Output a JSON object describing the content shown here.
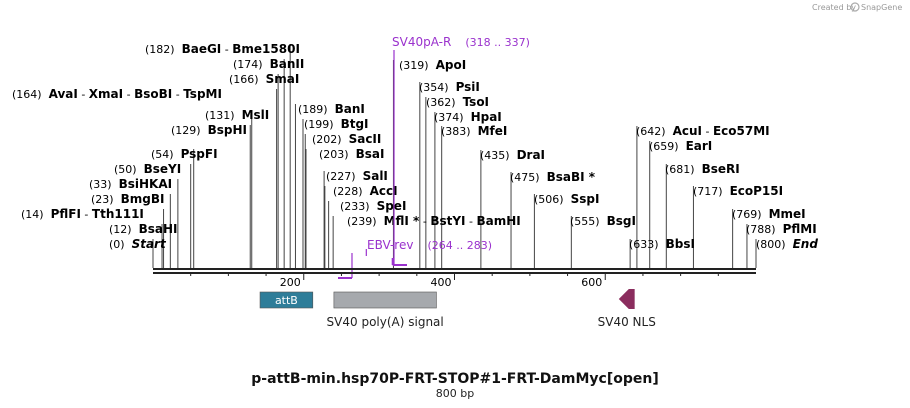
{
  "credit": {
    "text": "Created by",
    "brand": "SnapGene"
  },
  "title": "p-attB-min.hsp70P-FRT-STOP#1-FRT-DamMyc[open]",
  "subtitle": "800 bp",
  "ruler": {
    "length": 800,
    "ticks": [
      200,
      400,
      600
    ]
  },
  "sites": [
    {
      "pos": "(0)",
      "bp": 0,
      "label": [
        {
          "t": "Start",
          "i": true
        }
      ]
    },
    {
      "pos": "(12)",
      "bp": 12,
      "label": [
        {
          "t": "BsaHI"
        }
      ]
    },
    {
      "pos": "(14)",
      "bp": 14,
      "label": [
        {
          "t": "PflFI"
        },
        {
          "t": " - "
        },
        {
          "t": "Tth111I"
        }
      ]
    },
    {
      "pos": "(23)",
      "bp": 23,
      "label": [
        {
          "t": "BmgBI"
        }
      ]
    },
    {
      "pos": "(33)",
      "bp": 33,
      "label": [
        {
          "t": "BsiHKAI"
        }
      ]
    },
    {
      "pos": "(50)",
      "bp": 50,
      "label": [
        {
          "t": "BseYI"
        }
      ]
    },
    {
      "pos": "(54)",
      "bp": 54,
      "label": [
        {
          "t": "PspFI"
        }
      ]
    },
    {
      "pos": "(129)",
      "bp": 129,
      "label": [
        {
          "t": "BspHI"
        }
      ]
    },
    {
      "pos": "(131)",
      "bp": 131,
      "label": [
        {
          "t": "MslI"
        }
      ]
    },
    {
      "pos": "(164)",
      "bp": 164,
      "label": [
        {
          "t": "AvaI"
        },
        {
          "t": " - "
        },
        {
          "t": "XmaI"
        },
        {
          "t": " - "
        },
        {
          "t": "BsoBI"
        },
        {
          "t": " - "
        },
        {
          "t": "TspMI"
        }
      ]
    },
    {
      "pos": "(166)",
      "bp": 166,
      "label": [
        {
          "t": "SmaI"
        }
      ]
    },
    {
      "pos": "(174)",
      "bp": 174,
      "label": [
        {
          "t": "BanII"
        }
      ]
    },
    {
      "pos": "(182)",
      "bp": 182,
      "label": [
        {
          "t": "BaeGI"
        },
        {
          "t": " - "
        },
        {
          "t": "Bme1580I"
        }
      ]
    },
    {
      "pos": "(189)",
      "bp": 189,
      "label": [
        {
          "t": "BanI"
        }
      ]
    },
    {
      "pos": "(199)",
      "bp": 199,
      "label": [
        {
          "t": "BtgI"
        }
      ]
    },
    {
      "pos": "(202)",
      "bp": 202,
      "label": [
        {
          "t": "SacII"
        }
      ]
    },
    {
      "pos": "(203)",
      "bp": 203,
      "label": [
        {
          "t": "BsaI"
        }
      ]
    },
    {
      "pos": "(227)",
      "bp": 227,
      "label": [
        {
          "t": "SalI"
        }
      ]
    },
    {
      "pos": "(228)",
      "bp": 228,
      "label": [
        {
          "t": "AccI"
        }
      ]
    },
    {
      "pos": "(233)",
      "bp": 233,
      "label": [
        {
          "t": "SpeI"
        }
      ]
    },
    {
      "pos": "(239)",
      "bp": 239,
      "label": [
        {
          "t": "MflI *"
        },
        {
          "t": " - "
        },
        {
          "t": "BstYI"
        },
        {
          "t": " - "
        },
        {
          "t": "BamHI"
        }
      ]
    },
    {
      "pos": "(319)",
      "bp": 319,
      "label": [
        {
          "t": "ApoI"
        }
      ]
    },
    {
      "pos": "(354)",
      "bp": 354,
      "label": [
        {
          "t": "PsiI"
        }
      ]
    },
    {
      "pos": "(362)",
      "bp": 362,
      "label": [
        {
          "t": "TsoI"
        }
      ]
    },
    {
      "pos": "(374)",
      "bp": 374,
      "label": [
        {
          "t": "HpaI"
        }
      ]
    },
    {
      "pos": "(383)",
      "bp": 383,
      "label": [
        {
          "t": "MfeI"
        }
      ]
    },
    {
      "pos": "(435)",
      "bp": 435,
      "label": [
        {
          "t": "DraI"
        }
      ]
    },
    {
      "pos": "(475)",
      "bp": 475,
      "label": [
        {
          "t": "BsaBI *"
        }
      ]
    },
    {
      "pos": "(506)",
      "bp": 506,
      "label": [
        {
          "t": "SspI"
        }
      ]
    },
    {
      "pos": "(555)",
      "bp": 555,
      "label": [
        {
          "t": "BsgI"
        }
      ]
    },
    {
      "pos": "(633)",
      "bp": 633,
      "label": [
        {
          "t": "BbsI"
        }
      ]
    },
    {
      "pos": "(642)",
      "bp": 642,
      "label": [
        {
          "t": "AcuI"
        },
        {
          "t": " - "
        },
        {
          "t": "Eco57MI"
        }
      ]
    },
    {
      "pos": "(659)",
      "bp": 659,
      "label": [
        {
          "t": "EarI"
        }
      ]
    },
    {
      "pos": "(681)",
      "bp": 681,
      "label": [
        {
          "t": "BseRI"
        }
      ]
    },
    {
      "pos": "(717)",
      "bp": 717,
      "label": [
        {
          "t": "EcoP15I"
        }
      ]
    },
    {
      "pos": "(769)",
      "bp": 769,
      "label": [
        {
          "t": "MmeI"
        }
      ]
    },
    {
      "pos": "(788)",
      "bp": 788,
      "label": [
        {
          "t": "PflMI"
        }
      ]
    },
    {
      "pos": "(800)",
      "bp": 800,
      "label": [
        {
          "t": "End",
          "i": true
        }
      ]
    }
  ],
  "primers": [
    {
      "name": "SV40pA-R",
      "range": "(318 .. 337)",
      "start": 318,
      "end": 337
    },
    {
      "name": "EBV-rev",
      "range": "(264 .. 283)",
      "start": 264,
      "end": 283
    }
  ],
  "features": [
    {
      "name": "attB",
      "start": 142,
      "end": 212,
      "color": "#2e7d99",
      "label_inside": true
    },
    {
      "name": "SV40 poly(A) signal",
      "start": 240,
      "end": 376,
      "color": "#a6a9ad"
    },
    {
      "name": "SV40 NLS",
      "start": 618,
      "end": 639,
      "color": "#8b2d5e",
      "arrow": "left"
    }
  ],
  "colors": {
    "primer": "#9a32cd",
    "backbone": "#222222"
  }
}
